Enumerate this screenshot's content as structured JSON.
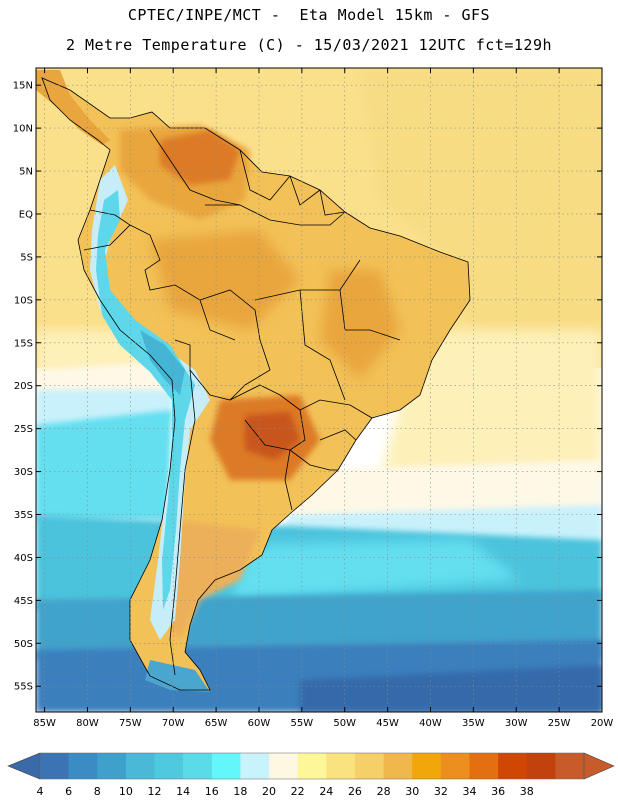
{
  "header": {
    "line1": "CPTEC/INPE/MCT -  Eta Model 15km - GFS",
    "line2": "2 Metre Temperature (C) - 15/03/2021 12UTC fct=129h"
  },
  "map": {
    "lat_range": [
      -58,
      17
    ],
    "lon_range": [
      -86,
      -20
    ],
    "lat_ticks": [
      {
        "value": 15,
        "label": "15N"
      },
      {
        "value": 10,
        "label": "10N"
      },
      {
        "value": 5,
        "label": "5N"
      },
      {
        "value": 0,
        "label": "EQ"
      },
      {
        "value": -5,
        "label": "5S"
      },
      {
        "value": -10,
        "label": "10S"
      },
      {
        "value": -15,
        "label": "15S"
      },
      {
        "value": -20,
        "label": "20S"
      },
      {
        "value": -25,
        "label": "25S"
      },
      {
        "value": -30,
        "label": "30S"
      },
      {
        "value": -35,
        "label": "35S"
      },
      {
        "value": -40,
        "label": "40S"
      },
      {
        "value": -45,
        "label": "45S"
      },
      {
        "value": -50,
        "label": "50S"
      },
      {
        "value": -55,
        "label": "55S"
      }
    ],
    "lon_ticks": [
      {
        "value": -85,
        "label": "85W"
      },
      {
        "value": -80,
        "label": "80W"
      },
      {
        "value": -75,
        "label": "75W"
      },
      {
        "value": -70,
        "label": "70W"
      },
      {
        "value": -65,
        "label": "65W"
      },
      {
        "value": -60,
        "label": "60W"
      },
      {
        "value": -55,
        "label": "55W"
      },
      {
        "value": -50,
        "label": "50W"
      },
      {
        "value": -45,
        "label": "45W"
      },
      {
        "value": -40,
        "label": "40W"
      },
      {
        "value": -35,
        "label": "35W"
      },
      {
        "value": -30,
        "label": "30W"
      },
      {
        "value": -25,
        "label": "25W"
      },
      {
        "value": -20,
        "label": "20W"
      }
    ]
  },
  "colorbar": {
    "labels": [
      "4",
      "6",
      "8",
      "10",
      "12",
      "14",
      "16",
      "18",
      "20",
      "22",
      "24",
      "26",
      "28",
      "30",
      "32",
      "34",
      "36",
      "38"
    ],
    "colors": [
      "#3c73b4",
      "#3b8cc4",
      "#40a0cc",
      "#4ab9d8",
      "#4fc9de",
      "#5adce8",
      "#63f7fb",
      "#c8f3fc",
      "#fdf8e1",
      "#fdf79a",
      "#fae37e",
      "#f5cf67",
      "#f0b84c",
      "#f0a70a",
      "#ec8f1f",
      "#e46f0e",
      "#cf4703",
      "#c2410c",
      "#c75c2a"
    ],
    "left_arrow_color": "#3a6aa8",
    "right_arrow_color": "#c75c2a"
  },
  "palette": {
    "sea_north": "#fbe08c",
    "sea_north2": "#f7dc83",
    "sea_mid": "#fdf0b8",
    "sea_pale": "#fef8e6",
    "sea_cyan_light": "#c9f1fb",
    "sea_cyan": "#63dff0",
    "sea_teal": "#4cc3dc",
    "sea_blue": "#3fa3cc",
    "sea_deep": "#3b7fbd",
    "sea_deepest": "#356aaa",
    "land_base": "#f2c157",
    "land_warm": "#e9a63e",
    "land_hot": "#dd7a25",
    "land_hottest": "#c8561a",
    "andes_pale": "#c7eef8",
    "andes_cyan": "#5fd7ea",
    "andes_teal": "#44b5d4",
    "patagonia": "#edb05a",
    "tierra": "#4aa6cf"
  }
}
